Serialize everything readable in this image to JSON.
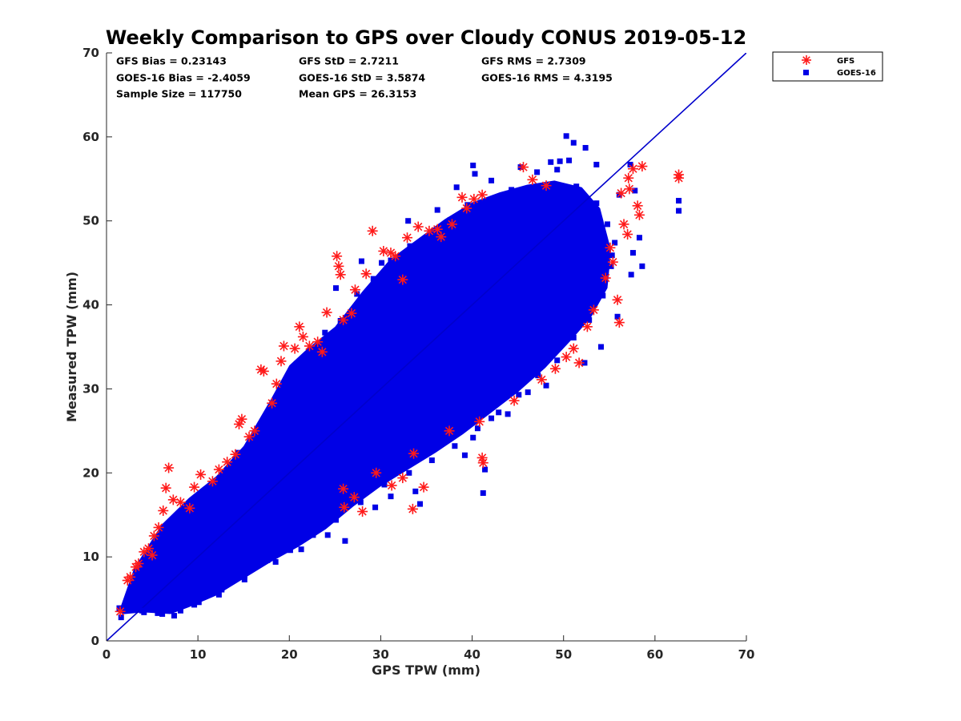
{
  "chart_data": {
    "type": "scatter",
    "title": "Weekly Comparison to GPS over Cloudy CONUS 2019-05-12",
    "xlabel": "GPS TPW (mm)",
    "ylabel": "Measured TPW (mm)",
    "xlim": [
      0,
      70
    ],
    "ylim": [
      0,
      70
    ],
    "xticks": [
      "0",
      "10",
      "20",
      "30",
      "40",
      "50",
      "60",
      "70"
    ],
    "yticks": [
      "0",
      "10",
      "20",
      "30",
      "40",
      "50",
      "60",
      "70"
    ],
    "grid": false,
    "legend_position": "top-right, outside plot",
    "reference_line": {
      "x": [
        0,
        70
      ],
      "y": [
        0,
        70
      ],
      "color": "#0000cc"
    },
    "stats": [
      "GFS Bias = 0.23143",
      "GFS StD = 2.7211",
      "GFS RMS = 2.7309",
      "GOES-16 Bias = -2.4059",
      "GOES-16 StD = 3.5874",
      "GOES-16 RMS = 4.3195",
      "Sample Size = 117750",
      "Mean GPS = 26.3153"
    ],
    "series": [
      {
        "name": "GFS",
        "marker": "asterisk",
        "color": "#ff1a1a",
        "points": [
          [
            1.5,
            3.5
          ],
          [
            2.3,
            7.2
          ],
          [
            2.6,
            7.6
          ],
          [
            3.2,
            8.8
          ],
          [
            3.5,
            9.2
          ],
          [
            4.1,
            10.6
          ],
          [
            4.6,
            11.0
          ],
          [
            5.0,
            10.2
          ],
          [
            5.2,
            12.5
          ],
          [
            5.7,
            13.5
          ],
          [
            6.2,
            15.5
          ],
          [
            6.5,
            18.2
          ],
          [
            6.8,
            20.6
          ],
          [
            7.3,
            16.8
          ],
          [
            8.1,
            16.5
          ],
          [
            9.1,
            15.8
          ],
          [
            9.6,
            18.3
          ],
          [
            10.3,
            19.8
          ],
          [
            11.6,
            19.0
          ],
          [
            12.3,
            20.4
          ],
          [
            13.2,
            21.3
          ],
          [
            14.1,
            22.2
          ],
          [
            14.5,
            25.8
          ],
          [
            14.8,
            26.4
          ],
          [
            15.6,
            24.3
          ],
          [
            16.2,
            25.0
          ],
          [
            16.9,
            32.3
          ],
          [
            17.2,
            32.1
          ],
          [
            18.1,
            28.3
          ],
          [
            18.6,
            30.6
          ],
          [
            19.1,
            33.3
          ],
          [
            19.4,
            35.1
          ],
          [
            20.6,
            34.8
          ],
          [
            21.1,
            37.4
          ],
          [
            21.5,
            36.2
          ],
          [
            22.2,
            35.1
          ],
          [
            23.1,
            35.6
          ],
          [
            23.6,
            34.4
          ],
          [
            24.1,
            39.1
          ],
          [
            25.2,
            45.8
          ],
          [
            25.4,
            44.6
          ],
          [
            25.6,
            43.6
          ],
          [
            25.9,
            38.2
          ],
          [
            26.8,
            39.0
          ],
          [
            27.2,
            41.8
          ],
          [
            28.4,
            43.7
          ],
          [
            29.1,
            48.8
          ],
          [
            30.3,
            46.4
          ],
          [
            31.1,
            46.2
          ],
          [
            31.6,
            45.8
          ],
          [
            32.4,
            43.0
          ],
          [
            32.9,
            48.0
          ],
          [
            34.1,
            49.3
          ],
          [
            35.3,
            48.8
          ],
          [
            36.2,
            49.0
          ],
          [
            36.6,
            48.1
          ],
          [
            37.8,
            49.6
          ],
          [
            38.9,
            52.8
          ],
          [
            39.4,
            51.5
          ],
          [
            40.2,
            52.6
          ],
          [
            41.1,
            53.1
          ],
          [
            45.6,
            56.4
          ],
          [
            46.6,
            54.9
          ],
          [
            48.1,
            54.2
          ],
          [
            50.3,
            33.8
          ],
          [
            51.1,
            34.8
          ],
          [
            51.7,
            33.1
          ],
          [
            52.6,
            37.4
          ],
          [
            53.3,
            39.4
          ],
          [
            54.6,
            43.2
          ],
          [
            55.4,
            45.1
          ],
          [
            55.9,
            40.6
          ],
          [
            56.1,
            37.9
          ],
          [
            56.3,
            53.3
          ],
          [
            56.6,
            49.6
          ],
          [
            57.0,
            48.4
          ],
          [
            57.1,
            55.1
          ],
          [
            57.2,
            53.8
          ],
          [
            57.6,
            56.2
          ],
          [
            58.1,
            51.8
          ],
          [
            58.3,
            50.7
          ],
          [
            58.6,
            56.5
          ],
          [
            62.6,
            55.5
          ],
          [
            62.6,
            55.1
          ],
          [
            41.1,
            21.8
          ],
          [
            41.2,
            21.2
          ],
          [
            34.7,
            18.3
          ],
          [
            33.5,
            15.7
          ],
          [
            32.4,
            19.4
          ],
          [
            29.5,
            20.0
          ],
          [
            31.2,
            18.5
          ],
          [
            27.1,
            17.1
          ],
          [
            25.9,
            18.1
          ],
          [
            26.0,
            15.9
          ],
          [
            28.0,
            15.4
          ],
          [
            33.6,
            22.3
          ],
          [
            37.5,
            25.0
          ],
          [
            40.8,
            26.1
          ],
          [
            44.6,
            28.6
          ],
          [
            47.6,
            31.1
          ],
          [
            49.1,
            32.4
          ],
          [
            55.1,
            46.8
          ]
        ]
      },
      {
        "name": "GOES-16",
        "marker": "square",
        "color": "#0000e6",
        "points": [
          [
            50.3,
            60.1
          ],
          [
            51.1,
            59.3
          ],
          [
            52.4,
            58.7
          ],
          [
            40.1,
            56.6
          ],
          [
            40.3,
            55.6
          ],
          [
            45.3,
            56.4
          ],
          [
            48.6,
            57.0
          ],
          [
            49.6,
            57.1
          ],
          [
            50.6,
            57.2
          ],
          [
            53.6,
            56.7
          ],
          [
            57.3,
            56.7
          ],
          [
            62.6,
            52.4
          ],
          [
            62.6,
            51.2
          ],
          [
            57.6,
            46.2
          ],
          [
            58.6,
            44.6
          ],
          [
            58.3,
            48.0
          ],
          [
            38.3,
            54.0
          ],
          [
            42.1,
            54.8
          ],
          [
            44.3,
            53.7
          ],
          [
            47.1,
            55.8
          ],
          [
            49.3,
            56.1
          ],
          [
            56.1,
            53.1
          ],
          [
            57.8,
            53.6
          ],
          [
            55.3,
            45.9
          ],
          [
            25.1,
            42.0
          ],
          [
            27.9,
            45.2
          ],
          [
            30.1,
            45.0
          ],
          [
            33.0,
            50.0
          ],
          [
            36.2,
            51.3
          ],
          [
            41.2,
            17.6
          ],
          [
            41.4,
            20.4
          ],
          [
            34.3,
            16.3
          ],
          [
            29.4,
            15.9
          ],
          [
            31.1,
            17.2
          ],
          [
            33.8,
            17.8
          ],
          [
            39.2,
            22.1
          ],
          [
            40.1,
            24.2
          ],
          [
            42.1,
            26.5
          ],
          [
            43.9,
            27.0
          ],
          [
            46.1,
            29.6
          ],
          [
            48.1,
            30.4
          ],
          [
            52.3,
            33.1
          ],
          [
            54.1,
            35.0
          ],
          [
            55.9,
            38.6
          ],
          [
            57.4,
            43.6
          ],
          [
            26.1,
            11.9
          ],
          [
            24.2,
            12.6
          ],
          [
            21.3,
            10.9
          ],
          [
            18.5,
            9.4
          ],
          [
            15.1,
            7.3
          ],
          [
            12.3,
            5.5
          ],
          [
            9.6,
            4.3
          ],
          [
            7.4,
            3.0
          ],
          [
            5.6,
            3.3
          ],
          [
            3.9,
            3.6
          ],
          [
            1.6,
            2.8
          ],
          [
            1.4,
            3.9
          ],
          [
            2.1,
            4.1
          ],
          [
            2.8,
            4.4
          ],
          [
            3.2,
            5.8
          ],
          [
            4.4,
            8.2
          ],
          [
            5.3,
            9.6
          ],
          [
            6.1,
            11.3
          ],
          [
            7.2,
            13.6
          ],
          [
            8.3,
            14.0
          ],
          [
            9.4,
            15.9
          ],
          [
            10.6,
            17.1
          ],
          [
            11.8,
            18.4
          ],
          [
            13.1,
            19.6
          ],
          [
            14.4,
            22.4
          ],
          [
            15.8,
            23.5
          ],
          [
            17.2,
            26.2
          ],
          [
            18.3,
            28.4
          ],
          [
            19.6,
            30.5
          ],
          [
            20.8,
            33.0
          ],
          [
            22.4,
            34.7
          ],
          [
            23.9,
            36.7
          ],
          [
            25.6,
            38.1
          ],
          [
            27.4,
            41.3
          ],
          [
            29.2,
            43.1
          ],
          [
            31.1,
            45.3
          ],
          [
            33.2,
            47.0
          ],
          [
            35.4,
            48.4
          ],
          [
            37.6,
            50.1
          ],
          [
            39.5,
            51.9
          ],
          [
            41.8,
            52.4
          ],
          [
            44.1,
            52.9
          ],
          [
            46.3,
            53.4
          ],
          [
            48.8,
            53.9
          ],
          [
            51.4,
            54.1
          ],
          [
            53.6,
            52.1
          ],
          [
            54.8,
            49.6
          ],
          [
            55.6,
            47.4
          ],
          [
            55.2,
            44.6
          ],
          [
            54.3,
            41.1
          ],
          [
            52.8,
            38.2
          ],
          [
            51.1,
            36.1
          ],
          [
            49.3,
            33.4
          ],
          [
            47.2,
            31.6
          ],
          [
            45.1,
            29.3
          ],
          [
            42.9,
            27.2
          ],
          [
            40.6,
            25.3
          ],
          [
            38.1,
            23.2
          ],
          [
            35.6,
            21.5
          ],
          [
            33.1,
            20.0
          ],
          [
            30.4,
            18.6
          ],
          [
            27.8,
            16.5
          ],
          [
            25.1,
            14.4
          ],
          [
            22.6,
            12.6
          ],
          [
            20.1,
            10.8
          ],
          [
            17.6,
            9.6
          ],
          [
            15.1,
            7.8
          ],
          [
            12.6,
            6.1
          ],
          [
            10.1,
            4.6
          ],
          [
            8.1,
            3.6
          ],
          [
            6.1,
            3.2
          ],
          [
            4.1,
            3.4
          ]
        ]
      }
    ]
  }
}
